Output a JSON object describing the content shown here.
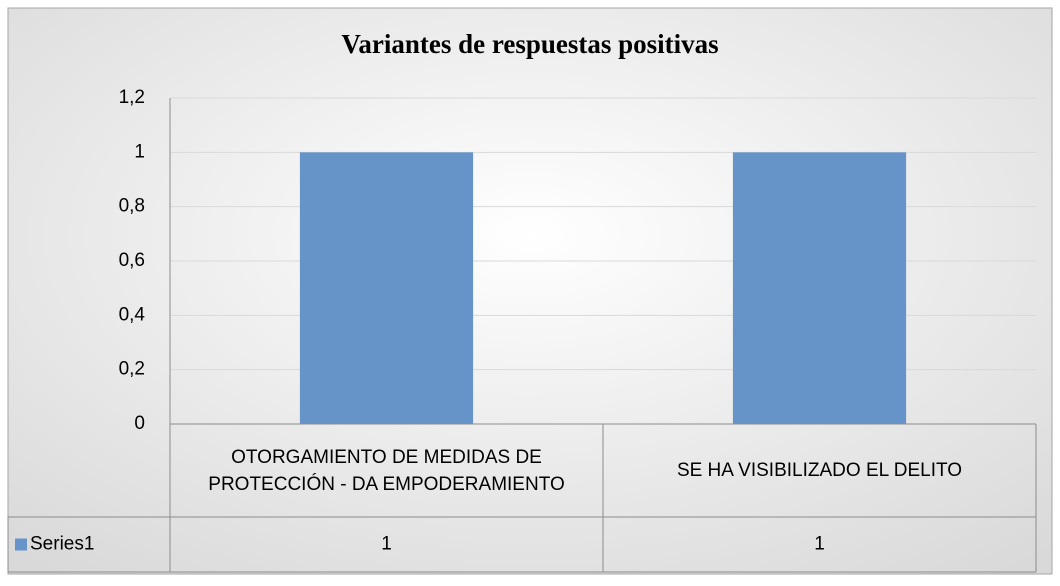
{
  "chart_data": {
    "type": "bar",
    "title": "Variantes de respuestas positivas",
    "categories": [
      "OTORGAMIENTO DE MEDIDAS DE PROTECCIÓN - DA EMPODERAMIENTO",
      "SE HA VISIBILIZADO EL DELITO"
    ],
    "series": [
      {
        "name": "Series1",
        "color": "#6794c8",
        "values": [
          1,
          1
        ]
      }
    ],
    "ylim": [
      0,
      1.2
    ],
    "yticks": [
      0,
      {
        "value": 0.2,
        "label": "0,2"
      },
      {
        "value": 0.4,
        "label": "0,4"
      },
      {
        "value": 0.6,
        "label": "0,6"
      },
      {
        "value": 0.8,
        "label": "0,8"
      },
      1,
      {
        "value": 1.2,
        "label": "1,2"
      }
    ],
    "grid": true,
    "data_table": true
  }
}
